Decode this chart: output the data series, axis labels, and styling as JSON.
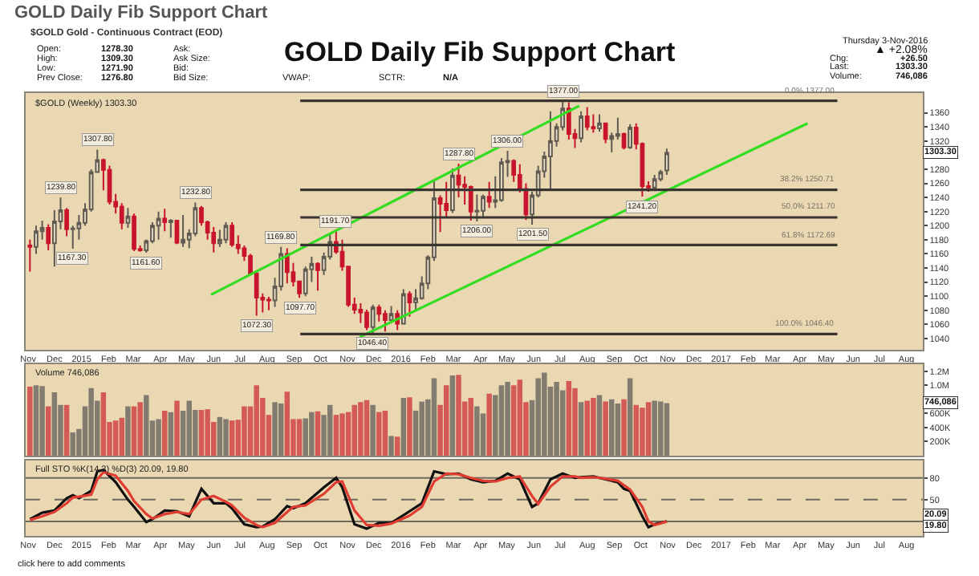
{
  "chart_data": [
    {
      "type": "other",
      "title": "GOLD Daily Fib Support Chart",
      "subtitle": "$GOLD Gold - Continuous Contract (EOD)",
      "annotations": [
        "GOLD Daily Fib Support Chart",
        "Open:",
        "1278.30",
        "High:",
        "1309.30",
        "Low:",
        "1271.90",
        "Prev Close:",
        "1276.80",
        "Ask:",
        "Ask Size:",
        "Bid:",
        "Bid Size:",
        "VWAP:",
        "SCTR:",
        "N/A",
        "Thursday 3-Nov-2016",
        "▲ +2.08%",
        "Chg:",
        "+26.50",
        "Last:",
        "1303.30",
        "Volume:",
        "746,086",
        "click here to add comments"
      ]
    },
    {
      "type": "candlestick",
      "title": "$GOLD (Weekly) 1303.30",
      "x": [
        "2014-11-03",
        "2014-11-10",
        "2014-11-17",
        "2014-11-24",
        "2014-12-01",
        "2014-12-08",
        "2014-12-15",
        "2014-12-22",
        "2014-12-29",
        "2015-01-05",
        "2015-01-12",
        "2015-01-19",
        "2015-01-26",
        "2015-02-02",
        "2015-02-09",
        "2015-02-16",
        "2015-02-23",
        "2015-03-02",
        "2015-03-09",
        "2015-03-16",
        "2015-03-23",
        "2015-03-30",
        "2015-04-06",
        "2015-04-13",
        "2015-04-20",
        "2015-04-27",
        "2015-05-04",
        "2015-05-11",
        "2015-05-18",
        "2015-05-25",
        "2015-06-01",
        "2015-06-08",
        "2015-06-15",
        "2015-06-22",
        "2015-06-29",
        "2015-07-06",
        "2015-07-13",
        "2015-07-20",
        "2015-07-27",
        "2015-08-03",
        "2015-08-10",
        "2015-08-17",
        "2015-08-24",
        "2015-08-31",
        "2015-09-07",
        "2015-09-14",
        "2015-09-21",
        "2015-09-28",
        "2015-10-05",
        "2015-10-12",
        "2015-10-19",
        "2015-10-26",
        "2015-11-02",
        "2015-11-09",
        "2015-11-16",
        "2015-11-23",
        "2015-11-30",
        "2015-12-07",
        "2015-12-14",
        "2015-12-21",
        "2015-12-28",
        "2016-01-04",
        "2016-01-11",
        "2016-01-18",
        "2016-01-25",
        "2016-02-01",
        "2016-02-08",
        "2016-02-15",
        "2016-02-22",
        "2016-02-29",
        "2016-03-07",
        "2016-03-14",
        "2016-03-21",
        "2016-03-28",
        "2016-04-04",
        "2016-04-11",
        "2016-04-18",
        "2016-04-25",
        "2016-05-02",
        "2016-05-09",
        "2016-05-16",
        "2016-05-23",
        "2016-05-30",
        "2016-06-06",
        "2016-06-13",
        "2016-06-20",
        "2016-06-27",
        "2016-07-04",
        "2016-07-11",
        "2016-07-18",
        "2016-07-25",
        "2016-08-01",
        "2016-08-08",
        "2016-08-15",
        "2016-08-22",
        "2016-08-29",
        "2016-09-05",
        "2016-09-12",
        "2016-09-19",
        "2016-09-26",
        "2016-10-03",
        "2016-10-10",
        "2016-10-17",
        "2016-10-24",
        "2016-10-31"
      ],
      "ohlc": [
        [
          1172,
          1180,
          1135,
          1170
        ],
        [
          1170,
          1200,
          1160,
          1192
        ],
        [
          1192,
          1207,
          1180,
          1197
        ],
        [
          1197,
          1202,
          1165,
          1175
        ],
        [
          1175,
          1222,
          1142,
          1206
        ],
        [
          1206,
          1239.8,
          1195,
          1222
        ],
        [
          1222,
          1225,
          1185,
          1195
        ],
        [
          1195,
          1200,
          1167.3,
          1196
        ],
        [
          1196,
          1215,
          1180,
          1204
        ],
        [
          1204,
          1232,
          1200,
          1223
        ],
        [
          1223,
          1280,
          1220,
          1276
        ],
        [
          1276,
          1307.8,
          1275,
          1293
        ],
        [
          1293,
          1295,
          1250,
          1279
        ],
        [
          1279,
          1285,
          1230,
          1234
        ],
        [
          1234,
          1245,
          1217,
          1227
        ],
        [
          1227,
          1232,
          1195,
          1204
        ],
        [
          1204,
          1225,
          1197,
          1213
        ],
        [
          1213,
          1217,
          1164,
          1167
        ],
        [
          1167,
          1172,
          1163,
          1165
        ],
        [
          1165,
          1180,
          1161.6,
          1178
        ],
        [
          1178,
          1205,
          1175,
          1200
        ],
        [
          1200,
          1220,
          1180,
          1210
        ],
        [
          1210,
          1224,
          1192,
          1205
        ],
        [
          1205,
          1209,
          1183,
          1207
        ],
        [
          1207,
          1208,
          1174,
          1176
        ],
        [
          1176,
          1215,
          1170,
          1180
        ],
        [
          1180,
          1195,
          1168,
          1189
        ],
        [
          1189,
          1232.8,
          1185,
          1225
        ],
        [
          1225,
          1228,
          1200,
          1205
        ],
        [
          1205,
          1207,
          1180,
          1190
        ],
        [
          1190,
          1198,
          1162,
          1175
        ],
        [
          1175,
          1194,
          1170,
          1180
        ],
        [
          1180,
          1205,
          1175,
          1200
        ],
        [
          1200,
          1205,
          1170,
          1173
        ],
        [
          1173,
          1186,
          1160,
          1168
        ],
        [
          1168,
          1172,
          1150,
          1157
        ],
        [
          1157,
          1160,
          1130,
          1132
        ],
        [
          1132,
          1135,
          1072.3,
          1098
        ],
        [
          1098,
          1104,
          1077,
          1095
        ],
        [
          1095,
          1099,
          1080,
          1094
        ],
        [
          1094,
          1126,
          1085,
          1114
        ],
        [
          1114,
          1169.8,
          1108,
          1160
        ],
        [
          1160,
          1168,
          1118,
          1134
        ],
        [
          1134,
          1147,
          1114,
          1121
        ],
        [
          1121,
          1122,
          1097.7,
          1104
        ],
        [
          1104,
          1142,
          1100,
          1138
        ],
        [
          1138,
          1156,
          1120,
          1146
        ],
        [
          1146,
          1148,
          1108,
          1137
        ],
        [
          1137,
          1162,
          1130,
          1156
        ],
        [
          1156,
          1188,
          1152,
          1177
        ],
        [
          1177,
          1191.7,
          1160,
          1163
        ],
        [
          1163,
          1180,
          1136,
          1142
        ],
        [
          1142,
          1143,
          1085,
          1088
        ],
        [
          1088,
          1098,
          1075,
          1081
        ],
        [
          1081,
          1090,
          1062,
          1077
        ],
        [
          1077,
          1081,
          1052,
          1056
        ],
        [
          1056,
          1088,
          1046.4,
          1084
        ],
        [
          1084,
          1088,
          1064,
          1075
        ],
        [
          1075,
          1080,
          1050,
          1066
        ],
        [
          1066,
          1086,
          1064,
          1075
        ],
        [
          1075,
          1080,
          1052,
          1061
        ],
        [
          1061,
          1110,
          1060,
          1103
        ],
        [
          1103,
          1107,
          1071,
          1091
        ],
        [
          1091,
          1110,
          1080,
          1097
        ],
        [
          1097,
          1128,
          1095,
          1118
        ],
        [
          1118,
          1158,
          1110,
          1155
        ],
        [
          1155,
          1263,
          1150,
          1239
        ],
        [
          1239,
          1243,
          1191,
          1231
        ],
        [
          1231,
          1262,
          1211,
          1222
        ],
        [
          1222,
          1281,
          1218,
          1271
        ],
        [
          1271,
          1287.8,
          1240,
          1258
        ],
        [
          1258,
          1270,
          1230,
          1255
        ],
        [
          1255,
          1257,
          1207,
          1220
        ],
        [
          1220,
          1244,
          1206,
          1221
        ],
        [
          1221,
          1244,
          1211,
          1241
        ],
        [
          1241,
          1262,
          1225,
          1234
        ],
        [
          1234,
          1270,
          1225,
          1236
        ],
        [
          1236,
          1296,
          1234,
          1290
        ],
        [
          1290,
          1306,
          1269,
          1292
        ],
        [
          1292,
          1294,
          1262,
          1272
        ],
        [
          1272,
          1287,
          1247,
          1252
        ],
        [
          1252,
          1260,
          1208,
          1216
        ],
        [
          1216,
          1248,
          1201.5,
          1243
        ],
        [
          1243,
          1285,
          1240,
          1277
        ],
        [
          1277,
          1305,
          1268,
          1298
        ],
        [
          1298,
          1362,
          1250,
          1320
        ],
        [
          1320,
          1345,
          1312,
          1340
        ],
        [
          1340,
          1377,
          1335,
          1366
        ],
        [
          1366,
          1375,
          1322,
          1330
        ],
        [
          1330,
          1337,
          1310,
          1324
        ],
        [
          1324,
          1362,
          1318,
          1355
        ],
        [
          1355,
          1368,
          1335,
          1340
        ],
        [
          1340,
          1358,
          1332,
          1338
        ],
        [
          1338,
          1358,
          1333,
          1345
        ],
        [
          1345,
          1346,
          1317,
          1323
        ],
        [
          1323,
          1332,
          1304,
          1327
        ],
        [
          1327,
          1353,
          1322,
          1330
        ],
        [
          1330,
          1332,
          1308,
          1311
        ],
        [
          1311,
          1344,
          1309,
          1339
        ],
        [
          1339,
          1345,
          1308,
          1316
        ],
        [
          1316,
          1318,
          1241.2,
          1256
        ],
        [
          1256,
          1263,
          1248,
          1254
        ],
        [
          1254,
          1272,
          1250,
          1266
        ],
        [
          1266,
          1279,
          1263,
          1276
        ],
        [
          1278.3,
          1309.3,
          1271.9,
          1303.3
        ]
      ],
      "series": [
        {
          "type": "line",
          "color": "#33dd22",
          "x": [
            "2015-05-29",
            "2016-07-23"
          ],
          "values": [
            1102,
            1370
          ]
        },
        {
          "type": "line",
          "color": "#33dd22",
          "x": [
            "2015-11-15",
            "2017-04-10"
          ],
          "values": [
            1042,
            1345
          ]
        },
        {
          "type": "line",
          "color": "#3a3530",
          "x": [
            "2015-09-08",
            "2017-05-14"
          ],
          "values": [
            1377,
            1377
          ]
        },
        {
          "type": "line",
          "color": "#3a3530",
          "x": [
            "2015-09-08",
            "2017-05-14"
          ],
          "values": [
            1250.71,
            1250.71
          ]
        },
        {
          "type": "line",
          "color": "#3a3530",
          "x": [
            "2015-09-08",
            "2017-05-14"
          ],
          "values": [
            1211.7,
            1211.7
          ]
        },
        {
          "type": "line",
          "color": "#3a3530",
          "x": [
            "2015-09-08",
            "2017-05-14"
          ],
          "values": [
            1172.69,
            1172.69
          ]
        },
        {
          "type": "line",
          "color": "#3a3530",
          "x": [
            "2015-09-08",
            "2017-05-14"
          ],
          "values": [
            1046.4,
            1046.4
          ]
        }
      ],
      "annotations": [
        {
          "text": "1239.80",
          "x": "2014-12-08",
          "y": 1239.8
        },
        {
          "text": "1167.30",
          "x": "2014-12-22",
          "y": 1167.3
        },
        {
          "text": "1307.80",
          "x": "2015-01-19",
          "y": 1307.8
        },
        {
          "text": "1161.60",
          "x": "2015-03-16",
          "y": 1161.6
        },
        {
          "text": "1232.80",
          "x": "2015-05-11",
          "y": 1232.8
        },
        {
          "text": "1072.30",
          "x": "2015-07-20",
          "y": 1072.3
        },
        {
          "text": "1169.80",
          "x": "2015-08-17",
          "y": 1169.8
        },
        {
          "text": "1097.70",
          "x": "2015-09-07",
          "y": 1097.7
        },
        {
          "text": "1191.70",
          "x": "2015-10-19",
          "y": 1191.7
        },
        {
          "text": "1046.40",
          "x": "2015-11-30",
          "y": 1046.4
        },
        {
          "text": "1287.80",
          "x": "2016-03-07",
          "y": 1287.8
        },
        {
          "text": "1206.00",
          "x": "2016-03-28",
          "y": 1206
        },
        {
          "text": "1306.00",
          "x": "2016-05-02",
          "y": 1306
        },
        {
          "text": "1201.50",
          "x": "2016-05-30",
          "y": 1201.5
        },
        {
          "text": "1377.00",
          "x": "2016-07-04",
          "y": 1377
        },
        {
          "text": "1241.20",
          "x": "2016-10-03",
          "y": 1241.2
        },
        {
          "text": "0.0% 1377.00",
          "x": "2017-05-14",
          "y": 1377
        },
        {
          "text": "38.2% 1250.71",
          "x": "2017-05-14",
          "y": 1250.71
        },
        {
          "text": "50.0% 1211.70",
          "x": "2017-05-14",
          "y": 1211.7
        },
        {
          "text": "61.8% 1172.69",
          "x": "2017-05-14",
          "y": 1172.69
        },
        {
          "text": "100.0% 1046.40",
          "x": "2017-05-14",
          "y": 1046.4
        },
        {
          "text": "1303.30",
          "y": 1303.3
        }
      ],
      "xlim": [
        "2014-10-29",
        "2017-08-20"
      ],
      "xticks": [
        {
          "value": "2014-11-01",
          "label": "Nov"
        },
        {
          "value": "2014-12-01",
          "label": "Dec"
        },
        {
          "value": "2015-01-01",
          "label": "2015"
        },
        {
          "value": "2015-02-01",
          "label": "Feb"
        },
        {
          "value": "2015-03-01",
          "label": "Mar"
        },
        {
          "value": "2015-04-01",
          "label": "Apr"
        },
        {
          "value": "2015-05-01",
          "label": "May"
        },
        {
          "value": "2015-06-01",
          "label": "Jun"
        },
        {
          "value": "2015-07-01",
          "label": "Jul"
        },
        {
          "value": "2015-08-01",
          "label": "Aug"
        },
        {
          "value": "2015-09-01",
          "label": "Sep"
        },
        {
          "value": "2015-10-01",
          "label": "Oct"
        },
        {
          "value": "2015-11-01",
          "label": "Nov"
        },
        {
          "value": "2015-12-01",
          "label": "Dec"
        },
        {
          "value": "2016-01-01",
          "label": "2016"
        },
        {
          "value": "2016-02-01",
          "label": "Feb"
        },
        {
          "value": "2016-03-01",
          "label": "Mar"
        },
        {
          "value": "2016-04-01",
          "label": "Apr"
        },
        {
          "value": "2016-05-01",
          "label": "May"
        },
        {
          "value": "2016-06-01",
          "label": "Jun"
        },
        {
          "value": "2016-07-01",
          "label": "Jul"
        },
        {
          "value": "2016-08-01",
          "label": "Aug"
        },
        {
          "value": "2016-09-01",
          "label": "Sep"
        },
        {
          "value": "2016-10-01",
          "label": "Oct"
        },
        {
          "value": "2016-11-01",
          "label": "Nov"
        },
        {
          "value": "2016-12-01",
          "label": "Dec"
        },
        {
          "value": "2017-01-01",
          "label": "2017"
        },
        {
          "value": "2017-02-01",
          "label": "Feb"
        },
        {
          "value": "2017-03-01",
          "label": "Mar"
        },
        {
          "value": "2017-04-01",
          "label": "Apr"
        },
        {
          "value": "2017-05-01",
          "label": "May"
        },
        {
          "value": "2017-06-01",
          "label": "Jun"
        },
        {
          "value": "2017-07-01",
          "label": "Jul"
        },
        {
          "value": "2017-08-01",
          "label": "Aug"
        }
      ],
      "ylim": [
        1024,
        1388
      ],
      "yticks": [
        1040,
        1060,
        1080,
        1100,
        1120,
        1140,
        1160,
        1180,
        1200,
        1220,
        1240,
        1260,
        1280,
        {
          "value": 1300,
          "label": null
        },
        1320,
        1340,
        1360
      ]
    },
    {
      "type": "bar",
      "title": "Volume 746,086",
      "tick_labels": "y",
      "x": [
        "2014-11-03",
        "2014-11-10",
        "2014-11-17",
        "2014-11-24",
        "2014-12-01",
        "2014-12-08",
        "2014-12-15",
        "2014-12-22",
        "2014-12-29",
        "2015-01-05",
        "2015-01-12",
        "2015-01-19",
        "2015-01-26",
        "2015-02-02",
        "2015-02-09",
        "2015-02-16",
        "2015-02-23",
        "2015-03-02",
        "2015-03-09",
        "2015-03-16",
        "2015-03-23",
        "2015-03-30",
        "2015-04-06",
        "2015-04-13",
        "2015-04-20",
        "2015-04-27",
        "2015-05-04",
        "2015-05-11",
        "2015-05-18",
        "2015-05-25",
        "2015-06-01",
        "2015-06-08",
        "2015-06-15",
        "2015-06-22",
        "2015-06-29",
        "2015-07-06",
        "2015-07-13",
        "2015-07-20",
        "2015-07-27",
        "2015-08-03",
        "2015-08-10",
        "2015-08-17",
        "2015-08-24",
        "2015-08-31",
        "2015-09-07",
        "2015-09-14",
        "2015-09-21",
        "2015-09-28",
        "2015-10-05",
        "2015-10-12",
        "2015-10-19",
        "2015-10-26",
        "2015-11-02",
        "2015-11-09",
        "2015-11-16",
        "2015-11-23",
        "2015-11-30",
        "2015-12-07",
        "2015-12-14",
        "2015-12-21",
        "2015-12-28",
        "2016-01-04",
        "2016-01-11",
        "2016-01-18",
        "2016-01-25",
        "2016-02-01",
        "2016-02-08",
        "2016-02-15",
        "2016-02-22",
        "2016-02-29",
        "2016-03-07",
        "2016-03-14",
        "2016-03-21",
        "2016-03-28",
        "2016-04-04",
        "2016-04-11",
        "2016-04-18",
        "2016-04-25",
        "2016-05-02",
        "2016-05-09",
        "2016-05-16",
        "2016-05-23",
        "2016-05-30",
        "2016-06-06",
        "2016-06-13",
        "2016-06-20",
        "2016-06-27",
        "2016-07-04",
        "2016-07-11",
        "2016-07-18",
        "2016-07-25",
        "2016-08-01",
        "2016-08-08",
        "2016-08-15",
        "2016-08-22",
        "2016-08-29",
        "2016-09-05",
        "2016-09-12",
        "2016-09-19",
        "2016-09-26",
        "2016-10-03",
        "2016-10-10",
        "2016-10-17",
        "2016-10-24",
        "2016-10-31"
      ],
      "values": [
        980000,
        1000000,
        990000,
        700000,
        900000,
        720000,
        720000,
        330000,
        380000,
        700000,
        960000,
        780000,
        900000,
        480000,
        500000,
        540000,
        700000,
        700000,
        760000,
        860000,
        500000,
        520000,
        640000,
        620000,
        780000,
        640000,
        780000,
        650000,
        650000,
        660000,
        480000,
        550000,
        520000,
        500000,
        510000,
        700000,
        700000,
        1000000,
        820000,
        580000,
        760000,
        740000,
        910000,
        520000,
        520000,
        530000,
        620000,
        630000,
        580000,
        720000,
        580000,
        600000,
        620000,
        720000,
        760000,
        790000,
        720000,
        620000,
        640000,
        280000,
        270000,
        820000,
        830000,
        640000,
        770000,
        800000,
        1100000,
        720000,
        1000000,
        1140000,
        1150000,
        770000,
        820000,
        700000,
        600000,
        880000,
        860000,
        1000000,
        1050000,
        1000000,
        1080000,
        760000,
        790000,
        1100000,
        1180000,
        980000,
        1050000,
        930000,
        1060000,
        960000,
        760000,
        780000,
        820000,
        860000,
        770000,
        800000,
        740000,
        800000,
        1100000,
        720000,
        680000,
        760000,
        780000,
        770000,
        746086
      ],
      "colors": [
        "#d45a55",
        "#827c70",
        "#827c70",
        "#d45a55",
        "#827c70",
        "#827c70",
        "#d45a55",
        "#827c70",
        "#827c70",
        "#827c70",
        "#827c70",
        "#827c70",
        "#d45a55",
        "#d45a55",
        "#d45a55",
        "#d45a55",
        "#827c70",
        "#d45a55",
        "#d45a55",
        "#827c70",
        "#827c70",
        "#827c70",
        "#d45a55",
        "#827c70",
        "#d45a55",
        "#827c70",
        "#827c70",
        "#827c70",
        "#d45a55",
        "#d45a55",
        "#d45a55",
        "#827c70",
        "#827c70",
        "#d45a55",
        "#d45a55",
        "#d45a55",
        "#d45a55",
        "#d45a55",
        "#d45a55",
        "#d45a55",
        "#827c70",
        "#827c70",
        "#d45a55",
        "#d45a55",
        "#d45a55",
        "#827c70",
        "#827c70",
        "#d45a55",
        "#827c70",
        "#827c70",
        "#d45a55",
        "#d45a55",
        "#d45a55",
        "#d45a55",
        "#d45a55",
        "#d45a55",
        "#827c70",
        "#d45a55",
        "#d45a55",
        "#827c70",
        "#d45a55",
        "#827c70",
        "#d45a55",
        "#827c70",
        "#827c70",
        "#827c70",
        "#827c70",
        "#d45a55",
        "#d45a55",
        "#827c70",
        "#d45a55",
        "#d45a55",
        "#d45a55",
        "#827c70",
        "#827c70",
        "#d45a55",
        "#827c70",
        "#827c70",
        "#827c70",
        "#d45a55",
        "#d45a55",
        "#d45a55",
        "#827c70",
        "#827c70",
        "#827c70",
        "#827c70",
        "#827c70",
        "#827c70",
        "#d45a55",
        "#d45a55",
        "#827c70",
        "#d45a55",
        "#d45a55",
        "#827c70",
        "#d45a55",
        "#827c70",
        "#827c70",
        "#d45a55",
        "#827c70",
        "#d45a55",
        "#d45a55",
        "#d45a55",
        "#827c70",
        "#827c70",
        "#827c70"
      ],
      "annotations": [
        {
          "text": "746,086",
          "y": 746086
        }
      ],
      "xlim": [
        "2014-10-29",
        "2017-08-20"
      ],
      "ylim": [
        0,
        1300000
      ],
      "yticks": [
        {
          "value": 200000,
          "label": "200K"
        },
        {
          "value": 400000,
          "label": "400K"
        },
        {
          "value": 600000,
          "label": "600K"
        },
        {
          "value": 800000,
          "label": null
        },
        {
          "value": 1000000,
          "label": "1.0M"
        },
        {
          "value": 1200000,
          "label": "1.2M"
        }
      ]
    },
    {
      "type": "line",
      "title": "Full STO %K(14,3) %D(3) 20.09, 19.80",
      "series": [
        {
          "color": "#111111",
          "x": [
            "2014-11-03",
            "2014-11-17",
            "2014-12-01",
            "2014-12-15",
            "2014-12-22",
            "2014-12-29",
            "2015-01-12",
            "2015-01-19",
            "2015-01-26",
            "2015-02-09",
            "2015-02-23",
            "2015-03-02",
            "2015-03-16",
            "2015-03-23",
            "2015-04-06",
            "2015-04-20",
            "2015-05-04",
            "2015-05-18",
            "2015-06-01",
            "2015-06-15",
            "2015-06-22",
            "2015-07-06",
            "2015-07-20",
            "2015-07-27",
            "2015-08-10",
            "2015-08-24",
            "2015-08-31",
            "2015-09-14",
            "2015-10-05",
            "2015-10-19",
            "2015-10-26",
            "2015-11-09",
            "2015-11-23",
            "2015-12-07",
            "2015-12-21",
            "2016-01-11",
            "2016-01-25",
            "2016-02-08",
            "2016-02-22",
            "2016-03-07",
            "2016-03-21",
            "2016-04-04",
            "2016-04-18",
            "2016-05-02",
            "2016-05-16",
            "2016-05-30",
            "2016-06-06",
            "2016-06-20",
            "2016-07-04",
            "2016-07-18",
            "2016-07-25",
            "2016-08-08",
            "2016-08-22",
            "2016-09-05",
            "2016-09-12",
            "2016-09-19",
            "2016-10-03",
            "2016-10-10",
            "2016-10-17",
            "2016-10-31"
          ],
          "values": [
            23,
            32,
            35,
            52,
            56,
            52,
            62,
            89,
            91,
            74,
            50,
            40,
            19,
            23,
            35,
            34,
            27,
            65,
            45,
            45,
            38,
            16,
            12,
            13,
            23,
            41,
            38,
            45,
            67,
            80,
            67,
            16,
            10,
            18,
            18,
            34,
            45,
            89,
            85,
            86,
            78,
            74,
            76,
            86,
            78,
            40,
            45,
            78,
            86,
            80,
            81,
            82,
            78,
            74,
            65,
            62,
            27,
            12,
            16,
            20.09
          ]
        },
        {
          "color": "#e03c31",
          "x": [
            "2014-11-03",
            "2014-11-17",
            "2014-12-01",
            "2014-12-15",
            "2014-12-22",
            "2014-12-29",
            "2015-01-12",
            "2015-01-19",
            "2015-01-26",
            "2015-02-09",
            "2015-02-23",
            "2015-03-02",
            "2015-03-16",
            "2015-03-23",
            "2015-04-06",
            "2015-04-20",
            "2015-05-04",
            "2015-05-18",
            "2015-06-01",
            "2015-06-15",
            "2015-06-22",
            "2015-07-06",
            "2015-07-20",
            "2015-07-27",
            "2015-08-10",
            "2015-08-24",
            "2015-08-31",
            "2015-09-14",
            "2015-10-05",
            "2015-10-19",
            "2015-10-26",
            "2015-11-09",
            "2015-11-23",
            "2015-12-07",
            "2015-12-21",
            "2016-01-11",
            "2016-01-25",
            "2016-02-08",
            "2016-02-22",
            "2016-03-07",
            "2016-03-21",
            "2016-04-04",
            "2016-04-18",
            "2016-05-02",
            "2016-05-16",
            "2016-05-30",
            "2016-06-06",
            "2016-06-20",
            "2016-07-04",
            "2016-07-18",
            "2016-07-25",
            "2016-08-08",
            "2016-08-22",
            "2016-09-05",
            "2016-09-12",
            "2016-09-19",
            "2016-10-03",
            "2016-10-10",
            "2016-10-17",
            "2016-10-31"
          ],
          "values": [
            22,
            27,
            33,
            45,
            53,
            54,
            57,
            78,
            88,
            83,
            62,
            48,
            30,
            24,
            30,
            33,
            30,
            50,
            55,
            47,
            42,
            25,
            15,
            12,
            18,
            33,
            40,
            42,
            58,
            74,
            75,
            35,
            15,
            14,
            17,
            28,
            40,
            75,
            86,
            85,
            80,
            76,
            75,
            80,
            82,
            55,
            44,
            68,
            82,
            82,
            80,
            81,
            79,
            76,
            70,
            64,
            40,
            20,
            15,
            19.8
          ]
        }
      ],
      "ref_lines": [
        {
          "axis": "y",
          "value": 80,
          "color": "#6e6a60"
        },
        {
          "axis": "y",
          "value": 50,
          "color": "#6e6a60",
          "line_style": "dashed"
        },
        {
          "axis": "y",
          "value": 20,
          "color": "#6e6a60"
        }
      ],
      "annotations": [
        "20.09",
        "19.80"
      ],
      "xlim": [
        "2014-10-29",
        "2017-08-20"
      ],
      "xticks": [
        {
          "value": "2014-11-01",
          "label": "Nov"
        },
        {
          "value": "2014-12-01",
          "label": "Dec"
        },
        {
          "value": "2015-01-01",
          "label": "2015"
        },
        {
          "value": "2015-02-01",
          "label": "Feb"
        },
        {
          "value": "2015-03-01",
          "label": "Mar"
        },
        {
          "value": "2015-04-01",
          "label": "Apr"
        },
        {
          "value": "2015-05-01",
          "label": "May"
        },
        {
          "value": "2015-06-01",
          "label": "Jun"
        },
        {
          "value": "2015-07-01",
          "label": "Jul"
        },
        {
          "value": "2015-08-01",
          "label": "Aug"
        },
        {
          "value": "2015-09-01",
          "label": "Sep"
        },
        {
          "value": "2015-10-01",
          "label": "Oct"
        },
        {
          "value": "2015-11-01",
          "label": "Nov"
        },
        {
          "value": "2015-12-01",
          "label": "Dec"
        },
        {
          "value": "2016-01-01",
          "label": "2016"
        },
        {
          "value": "2016-02-01",
          "label": "Feb"
        },
        {
          "value": "2016-03-01",
          "label": "Mar"
        },
        {
          "value": "2016-04-01",
          "label": "Apr"
        },
        {
          "value": "2016-05-01",
          "label": "May"
        },
        {
          "value": "2016-06-01",
          "label": "Jun"
        },
        {
          "value": "2016-07-01",
          "label": "Jul"
        },
        {
          "value": "2016-08-01",
          "label": "Aug"
        },
        {
          "value": "2016-09-01",
          "label": "Sep"
        },
        {
          "value": "2016-10-01",
          "label": "Oct"
        },
        {
          "value": "2016-11-01",
          "label": "Nov"
        },
        {
          "value": "2016-12-01",
          "label": "Dec"
        },
        {
          "value": "2017-01-01",
          "label": "2017"
        },
        {
          "value": "2017-02-01",
          "label": "Feb"
        },
        {
          "value": "2017-03-01",
          "label": "Mar"
        },
        {
          "value": "2017-04-01",
          "label": "Apr"
        },
        {
          "value": "2017-05-01",
          "label": "May"
        },
        {
          "value": "2017-06-01",
          "label": "Jun"
        },
        {
          "value": "2017-07-01",
          "label": "Jul"
        },
        {
          "value": "2017-08-01",
          "label": "Aug"
        }
      ],
      "ylim": [
        0,
        104
      ],
      "yticks": [
        {
          "value": 20,
          "label": null
        },
        50,
        80
      ]
    }
  ]
}
